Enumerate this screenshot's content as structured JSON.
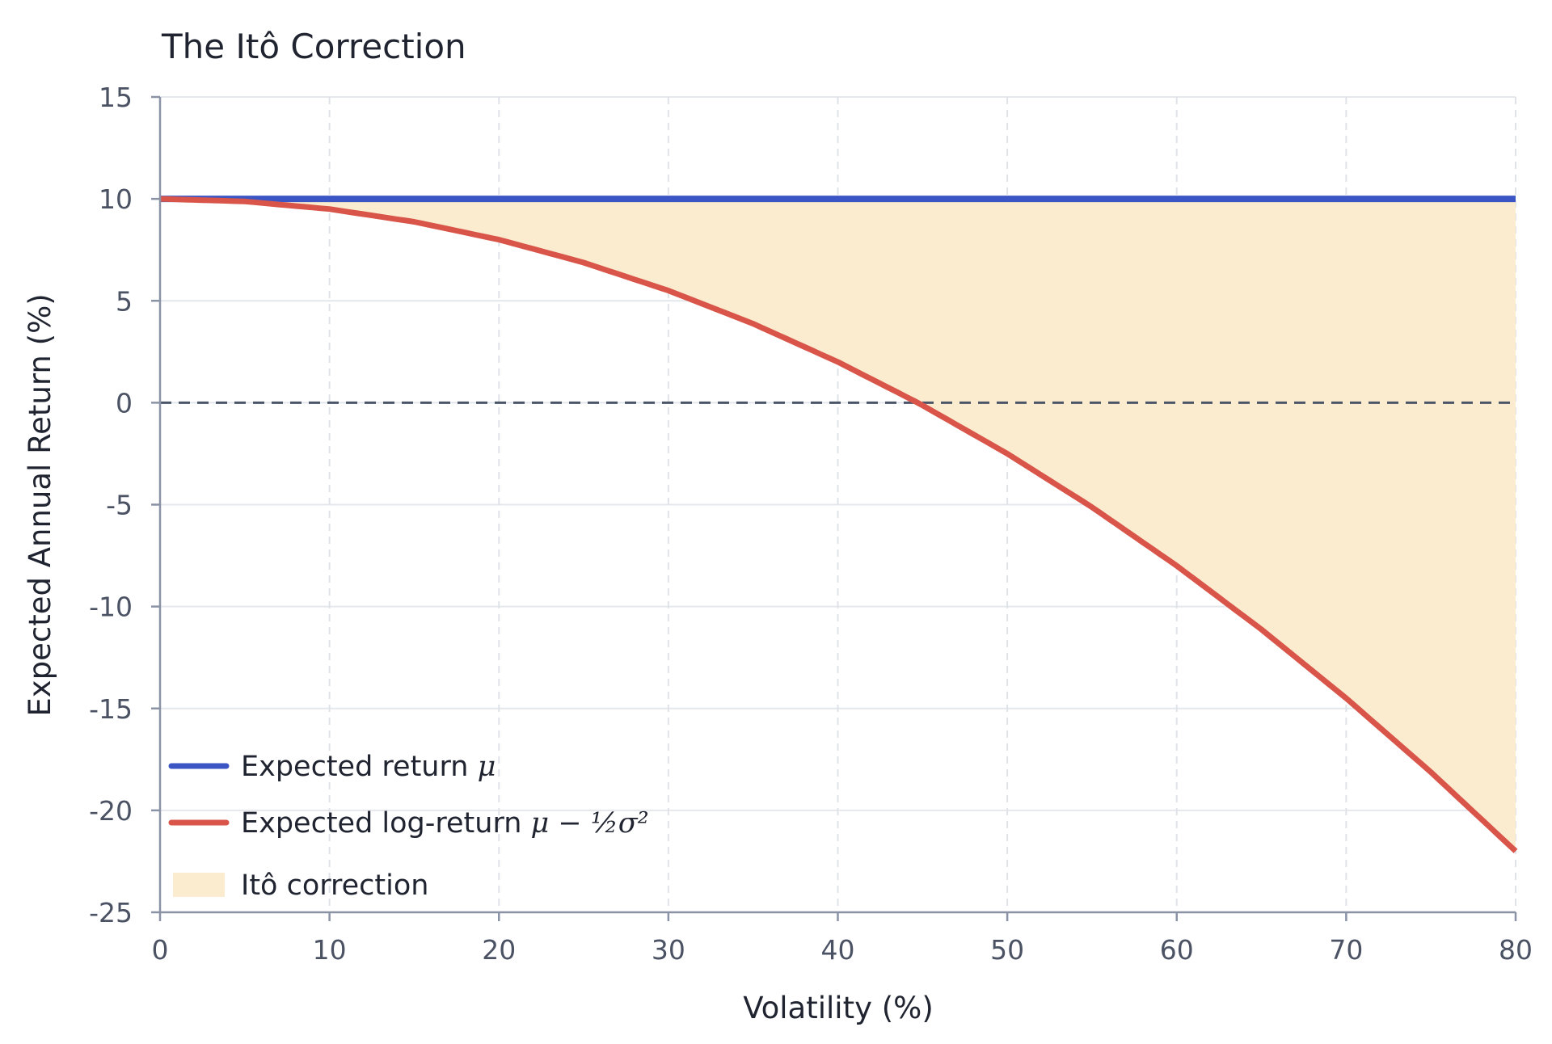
{
  "chart_data": {
    "type": "line",
    "title": "The Itô Correction",
    "xlabel": "Volatility (%)",
    "ylabel": "Expected Annual Return (%)",
    "xlim": [
      0,
      80
    ],
    "ylim": [
      -25,
      15
    ],
    "xticks": [
      0,
      10,
      20,
      30,
      40,
      50,
      60,
      70,
      80
    ],
    "yticks": [
      15,
      10,
      5,
      0,
      -5,
      -10,
      -15,
      -20,
      -25
    ],
    "xtick_labels": [
      "0",
      "10",
      "20",
      "30",
      "40",
      "50",
      "60",
      "70",
      "80"
    ],
    "ytick_labels": [
      "15",
      "10",
      "5",
      "0",
      "-5",
      "-10",
      "-15",
      "-20",
      "-25"
    ],
    "grid": true,
    "legend_position": "lower-left",
    "reference_line": {
      "y": 0,
      "style": "dashed"
    },
    "series": [
      {
        "name": "Expected return μ",
        "color": "#3b55c4",
        "x": [
          0,
          80
        ],
        "y": [
          10,
          10
        ]
      },
      {
        "name": "Expected log-return μ − ½σ²",
        "color": "#d9554a",
        "x": [
          0,
          5,
          10,
          15,
          20,
          25,
          30,
          35,
          40,
          44.72,
          50,
          55,
          60,
          65,
          70,
          75,
          80
        ],
        "y": [
          10,
          9.875,
          9.5,
          8.875,
          8,
          6.875,
          5.5,
          3.875,
          2,
          0,
          -2.5,
          -5.125,
          -8,
          -11.125,
          -14.5,
          -18.125,
          -22
        ]
      }
    ],
    "fill_between": {
      "name": "Itô correction",
      "color": "#fbecd0",
      "between": [
        "Expected return μ",
        "Expected log-return μ − ½σ²"
      ]
    }
  },
  "legend": {
    "items": [
      {
        "prefix": "Expected return ",
        "math": "μ",
        "color": "#3b55c4",
        "kind": "line"
      },
      {
        "prefix": "Expected log-return ",
        "math": "μ − ½σ²",
        "color": "#d9554a",
        "kind": "line"
      },
      {
        "prefix": "Itô correction",
        "math": "",
        "color": "#fbecd0",
        "kind": "patch"
      }
    ]
  },
  "colors": {
    "axis": "#8a93a6",
    "grid_solid": "#e4e7ec",
    "grid_dashed": "#dfe3e8",
    "zero_line": "#4a5568"
  }
}
